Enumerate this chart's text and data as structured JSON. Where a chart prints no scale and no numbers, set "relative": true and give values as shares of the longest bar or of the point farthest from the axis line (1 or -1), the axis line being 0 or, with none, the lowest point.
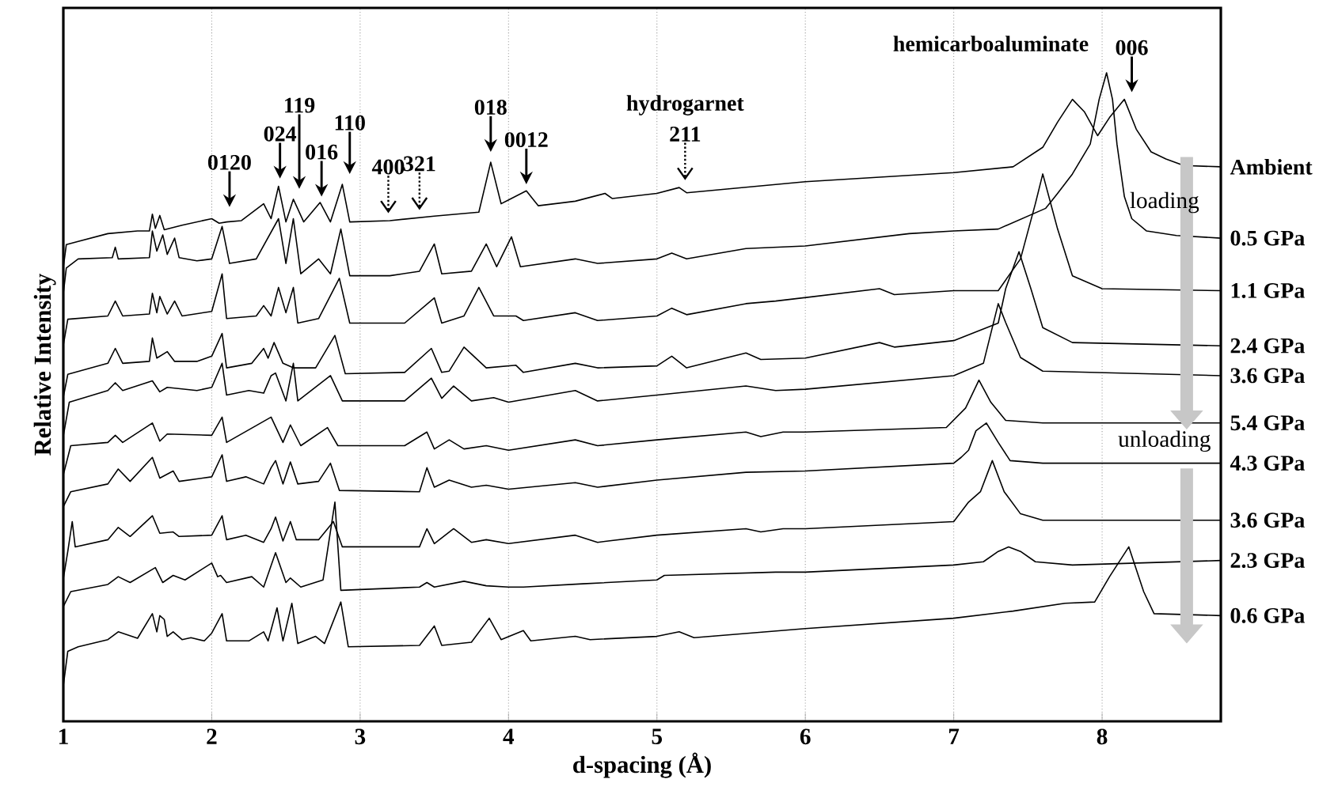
{
  "chart_data": {
    "type": "line",
    "relative": true,
    "xlabel": "d-spacing (Å)",
    "ylabel": "Relative Intensity",
    "xlim": [
      1,
      8.8
    ],
    "xticks": [
      1,
      2,
      3,
      4,
      5,
      6,
      7,
      8
    ],
    "grid": "x",
    "marker": "none",
    "series": [
      {
        "name": "Ambient",
        "color": "#000000",
        "x": [
          1.0,
          1.02,
          1.1,
          1.3,
          1.5,
          1.58,
          1.6,
          1.62,
          1.65,
          1.68,
          1.8,
          2.0,
          2.05,
          2.1,
          2.2,
          2.35,
          2.4,
          2.45,
          2.5,
          2.55,
          2.62,
          2.73,
          2.8,
          2.88,
          2.93,
          3.2,
          3.5,
          3.8,
          3.88,
          3.95,
          4.12,
          4.2,
          4.45,
          4.65,
          4.7,
          5.0,
          5.15,
          5.2,
          6.0,
          7.0,
          7.4,
          7.6,
          7.7,
          7.8,
          7.88,
          7.97,
          8.05,
          8.15,
          8.23,
          8.33,
          8.43,
          8.55,
          8.8
        ],
        "values": [
          0.7,
          0.735,
          0.74,
          0.752,
          0.756,
          0.756,
          0.782,
          0.76,
          0.78,
          0.758,
          0.765,
          0.775,
          0.768,
          0.77,
          0.772,
          0.798,
          0.775,
          0.825,
          0.77,
          0.805,
          0.77,
          0.8,
          0.77,
          0.828,
          0.77,
          0.772,
          0.779,
          0.785,
          0.862,
          0.798,
          0.818,
          0.795,
          0.802,
          0.814,
          0.806,
          0.814,
          0.823,
          0.815,
          0.832,
          0.846,
          0.855,
          0.885,
          0.924,
          0.959,
          0.94,
          0.903,
          0.931,
          0.959,
          0.913,
          0.878,
          0.867,
          0.857,
          0.855
        ]
      },
      {
        "name": "0.5 GPa",
        "color": "#000000",
        "x": [
          1.0,
          1.02,
          1.1,
          1.33,
          1.35,
          1.37,
          1.58,
          1.6,
          1.63,
          1.67,
          1.7,
          1.75,
          1.78,
          1.9,
          2.0,
          2.07,
          2.12,
          2.3,
          2.45,
          2.5,
          2.55,
          2.6,
          2.72,
          2.8,
          2.87,
          2.93,
          3.2,
          3.4,
          3.5,
          3.55,
          3.75,
          3.85,
          3.92,
          4.02,
          4.08,
          4.45,
          4.6,
          5.0,
          5.1,
          5.2,
          5.6,
          6.0,
          6.7,
          7.0,
          7.3,
          7.62,
          7.7,
          7.8,
          7.92,
          7.98,
          8.03,
          8.07,
          8.1,
          8.15,
          8.2,
          8.3,
          8.5,
          8.8
        ],
        "values": [
          0.66,
          0.699,
          0.713,
          0.715,
          0.731,
          0.713,
          0.715,
          0.756,
          0.725,
          0.75,
          0.72,
          0.745,
          0.715,
          0.71,
          0.713,
          0.763,
          0.706,
          0.713,
          0.775,
          0.706,
          0.775,
          0.69,
          0.713,
          0.69,
          0.759,
          0.687,
          0.687,
          0.694,
          0.736,
          0.69,
          0.694,
          0.736,
          0.701,
          0.747,
          0.701,
          0.713,
          0.706,
          0.713,
          0.722,
          0.713,
          0.729,
          0.733,
          0.752,
          0.756,
          0.759,
          0.791,
          0.814,
          0.844,
          0.89,
          0.959,
          1.0,
          0.959,
          0.89,
          0.809,
          0.775,
          0.756,
          0.749,
          0.745
        ]
      },
      {
        "name": "1.1 GPa",
        "color": "#000000",
        "x": [
          1.0,
          1.03,
          1.3,
          1.35,
          1.4,
          1.58,
          1.6,
          1.63,
          1.65,
          1.7,
          1.75,
          1.8,
          2.0,
          2.07,
          2.1,
          2.3,
          2.35,
          2.4,
          2.45,
          2.5,
          2.55,
          2.58,
          2.72,
          2.86,
          2.93,
          3.3,
          3.5,
          3.55,
          3.7,
          3.8,
          3.9,
          4.05,
          4.1,
          4.45,
          4.6,
          5.0,
          5.1,
          5.2,
          5.6,
          5.8,
          6.5,
          6.6,
          7.0,
          7.3,
          7.45,
          7.55,
          7.6,
          7.7,
          7.8,
          8.0,
          8.8
        ],
        "values": [
          0.58,
          0.62,
          0.625,
          0.648,
          0.625,
          0.628,
          0.66,
          0.63,
          0.655,
          0.628,
          0.648,
          0.625,
          0.632,
          0.69,
          0.621,
          0.625,
          0.641,
          0.625,
          0.669,
          0.63,
          0.669,
          0.614,
          0.621,
          0.683,
          0.614,
          0.614,
          0.653,
          0.614,
          0.625,
          0.669,
          0.625,
          0.625,
          0.618,
          0.63,
          0.618,
          0.625,
          0.637,
          0.627,
          0.644,
          0.648,
          0.667,
          0.658,
          0.664,
          0.664,
          0.713,
          0.798,
          0.844,
          0.759,
          0.687,
          0.667,
          0.664
        ]
      },
      {
        "name": "2.4 GPa",
        "color": "#000000",
        "x": [
          1.0,
          1.03,
          1.3,
          1.35,
          1.4,
          1.58,
          1.6,
          1.63,
          1.7,
          1.75,
          1.9,
          2.0,
          2.07,
          2.1,
          2.27,
          2.35,
          2.38,
          2.42,
          2.48,
          2.55,
          2.7,
          2.83,
          2.9,
          3.3,
          3.48,
          3.55,
          3.6,
          3.7,
          3.85,
          4.05,
          4.1,
          4.45,
          4.6,
          5.0,
          5.1,
          5.2,
          5.6,
          5.7,
          6.0,
          6.5,
          6.6,
          7.0,
          7.3,
          7.35,
          7.44,
          7.52,
          7.6,
          7.8,
          8.8
        ],
        "values": [
          0.5,
          0.535,
          0.552,
          0.575,
          0.552,
          0.555,
          0.591,
          0.56,
          0.57,
          0.555,
          0.555,
          0.563,
          0.598,
          0.545,
          0.552,
          0.575,
          0.56,
          0.584,
          0.552,
          0.545,
          0.545,
          0.595,
          0.536,
          0.538,
          0.575,
          0.538,
          0.54,
          0.577,
          0.545,
          0.549,
          0.538,
          0.552,
          0.545,
          0.548,
          0.563,
          0.545,
          0.568,
          0.558,
          0.56,
          0.584,
          0.577,
          0.587,
          0.614,
          0.667,
          0.724,
          0.667,
          0.607,
          0.584,
          0.579
        ]
      },
      {
        "name": "3.6 GPa",
        "color": "#000000",
        "x": [
          1.0,
          1.04,
          1.3,
          1.35,
          1.4,
          1.6,
          1.65,
          1.7,
          1.9,
          2.0,
          2.07,
          2.1,
          2.25,
          2.35,
          2.4,
          2.43,
          2.5,
          2.55,
          2.58,
          2.8,
          2.88,
          3.3,
          3.48,
          3.55,
          3.63,
          3.75,
          3.9,
          4.0,
          4.45,
          4.6,
          5.0,
          5.6,
          5.8,
          6.0,
          7.0,
          7.2,
          7.3,
          7.35,
          7.45,
          7.6,
          8.8
        ],
        "values": [
          0.44,
          0.492,
          0.51,
          0.522,
          0.51,
          0.525,
          0.508,
          0.515,
          0.51,
          0.515,
          0.552,
          0.503,
          0.51,
          0.506,
          0.533,
          0.537,
          0.494,
          0.552,
          0.494,
          0.533,
          0.494,
          0.494,
          0.529,
          0.498,
          0.517,
          0.494,
          0.499,
          0.492,
          0.51,
          0.494,
          0.503,
          0.517,
          0.51,
          0.512,
          0.533,
          0.552,
          0.644,
          0.615,
          0.561,
          0.54,
          0.533
        ]
      },
      {
        "name": "5.4 GPa",
        "color": "#000000",
        "x": [
          1.0,
          1.05,
          1.3,
          1.35,
          1.4,
          1.6,
          1.65,
          1.7,
          2.0,
          2.07,
          2.1,
          2.4,
          2.48,
          2.53,
          2.6,
          2.78,
          2.85,
          3.3,
          3.45,
          3.5,
          3.6,
          3.7,
          3.85,
          4.0,
          4.45,
          4.6,
          5.0,
          5.6,
          5.7,
          5.85,
          6.0,
          6.95,
          7.08,
          7.17,
          7.25,
          7.35,
          7.6,
          8.8
        ],
        "values": [
          0.38,
          0.425,
          0.43,
          0.441,
          0.43,
          0.46,
          0.432,
          0.443,
          0.441,
          0.469,
          0.43,
          0.469,
          0.43,
          0.457,
          0.425,
          0.453,
          0.425,
          0.425,
          0.446,
          0.42,
          0.434,
          0.42,
          0.425,
          0.418,
          0.434,
          0.425,
          0.434,
          0.446,
          0.439,
          0.446,
          0.446,
          0.453,
          0.483,
          0.526,
          0.492,
          0.464,
          0.46,
          0.46
        ]
      },
      {
        "name": "4.3 GPa",
        "color": "#000000",
        "x": [
          1.0,
          1.05,
          1.3,
          1.37,
          1.45,
          1.6,
          1.65,
          1.74,
          1.78,
          2.0,
          2.07,
          2.1,
          2.23,
          2.35,
          2.4,
          2.43,
          2.48,
          2.53,
          2.58,
          2.72,
          2.8,
          2.86,
          3.4,
          3.45,
          3.5,
          3.6,
          3.75,
          3.85,
          4.0,
          4.45,
          4.6,
          5.0,
          5.6,
          6.0,
          7.0,
          7.05,
          7.1,
          7.15,
          7.22,
          7.3,
          7.38,
          7.6,
          8.8
        ],
        "values": [
          0.331,
          0.354,
          0.366,
          0.389,
          0.37,
          0.407,
          0.375,
          0.386,
          0.37,
          0.377,
          0.411,
          0.37,
          0.377,
          0.366,
          0.391,
          0.402,
          0.366,
          0.4,
          0.366,
          0.37,
          0.398,
          0.356,
          0.354,
          0.391,
          0.361,
          0.372,
          0.361,
          0.364,
          0.358,
          0.368,
          0.361,
          0.372,
          0.384,
          0.386,
          0.398,
          0.407,
          0.418,
          0.448,
          0.46,
          0.43,
          0.402,
          0.398,
          0.398
        ]
      },
      {
        "name": "3.6 GPa",
        "color": "#000000",
        "x": [
          1.0,
          1.03,
          1.06,
          1.08,
          1.3,
          1.37,
          1.45,
          1.6,
          1.65,
          1.74,
          1.78,
          2.0,
          2.07,
          2.1,
          2.23,
          2.35,
          2.4,
          2.43,
          2.48,
          2.53,
          2.57,
          2.72,
          2.82,
          2.88,
          3.4,
          3.45,
          3.5,
          3.63,
          3.75,
          3.85,
          4.0,
          4.45,
          4.6,
          5.0,
          5.6,
          5.7,
          5.85,
          6.0,
          7.0,
          7.1,
          7.18,
          7.26,
          7.34,
          7.45,
          7.6,
          8.8
        ],
        "values": [
          0.22,
          0.262,
          0.308,
          0.269,
          0.28,
          0.299,
          0.285,
          0.317,
          0.29,
          0.292,
          0.285,
          0.287,
          0.317,
          0.28,
          0.287,
          0.276,
          0.297,
          0.315,
          0.278,
          0.308,
          0.28,
          0.28,
          0.308,
          0.269,
          0.269,
          0.297,
          0.274,
          0.297,
          0.276,
          0.28,
          0.274,
          0.287,
          0.276,
          0.287,
          0.297,
          0.292,
          0.297,
          0.297,
          0.308,
          0.338,
          0.354,
          0.402,
          0.354,
          0.32,
          0.31,
          0.31
        ]
      },
      {
        "name": "2.3 GPa",
        "color": "#000000",
        "x": [
          1.0,
          1.05,
          1.3,
          1.37,
          1.45,
          1.62,
          1.67,
          1.74,
          1.82,
          2.0,
          2.04,
          2.06,
          2.1,
          2.27,
          2.35,
          2.43,
          2.5,
          2.53,
          2.6,
          2.75,
          2.83,
          2.85,
          2.87,
          3.4,
          3.45,
          3.5,
          3.7,
          3.85,
          4.0,
          4.1,
          4.5,
          5.0,
          5.05,
          5.8,
          6.0,
          7.0,
          7.2,
          7.3,
          7.37,
          7.45,
          7.55,
          7.8,
          8.8
        ],
        "values": [
          0.177,
          0.2,
          0.211,
          0.223,
          0.214,
          0.237,
          0.214,
          0.225,
          0.218,
          0.244,
          0.223,
          0.225,
          0.214,
          0.223,
          0.207,
          0.26,
          0.214,
          0.221,
          0.207,
          0.218,
          0.338,
          0.27,
          0.202,
          0.207,
          0.214,
          0.207,
          0.216,
          0.209,
          0.207,
          0.207,
          0.212,
          0.218,
          0.225,
          0.23,
          0.23,
          0.241,
          0.246,
          0.262,
          0.269,
          0.262,
          0.246,
          0.241,
          0.248
        ]
      },
      {
        "name": "0.6 GPa",
        "color": "#000000",
        "x": [
          1.0,
          1.03,
          1.1,
          1.3,
          1.37,
          1.5,
          1.6,
          1.63,
          1.65,
          1.68,
          1.7,
          1.74,
          1.8,
          1.86,
          1.95,
          2.0,
          2.07,
          2.1,
          2.25,
          2.35,
          2.38,
          2.44,
          2.48,
          2.54,
          2.58,
          2.7,
          2.76,
          2.87,
          2.92,
          3.4,
          3.5,
          3.55,
          3.75,
          3.87,
          3.95,
          4.1,
          4.15,
          4.45,
          4.55,
          5.0,
          5.15,
          5.25,
          6.0,
          7.0,
          7.4,
          7.75,
          7.95,
          8.05,
          8.18,
          8.28,
          8.35,
          8.8
        ],
        "values": [
          0.055,
          0.108,
          0.115,
          0.126,
          0.138,
          0.128,
          0.166,
          0.138,
          0.163,
          0.157,
          0.131,
          0.138,
          0.126,
          0.129,
          0.124,
          0.136,
          0.166,
          0.124,
          0.124,
          0.138,
          0.124,
          0.175,
          0.124,
          0.182,
          0.12,
          0.131,
          0.12,
          0.184,
          0.115,
          0.117,
          0.147,
          0.117,
          0.122,
          0.159,
          0.126,
          0.14,
          0.124,
          0.131,
          0.126,
          0.131,
          0.138,
          0.129,
          0.143,
          0.159,
          0.17,
          0.182,
          0.184,
          0.223,
          0.269,
          0.2,
          0.166,
          0.163
        ]
      }
    ],
    "annotations": [
      "0120",
      "024",
      "119",
      "016",
      "110",
      "400",
      "321",
      "018",
      "0012",
      "211",
      "hydrogarnet",
      "006",
      "hemicarboaluminate",
      "loading",
      "unloading"
    ]
  }
}
